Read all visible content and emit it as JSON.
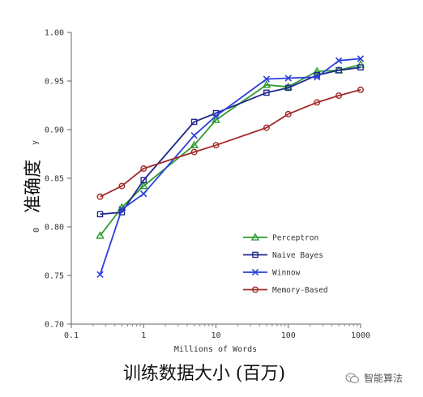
{
  "chart_data": {
    "type": "line",
    "xscale": "log",
    "xlim": [
      0.1,
      1000
    ],
    "ylim": [
      0.7,
      1.0
    ],
    "x_ticks": [
      "0.1",
      "1",
      "10",
      "100",
      "1000"
    ],
    "y_ticks": [
      "0.70",
      "0.75",
      "0.80",
      "0.85",
      "0.90",
      "0.95",
      "1.00"
    ],
    "xlabel": "Millions of Words",
    "xlabel_zh": "训练数据大小 (百万)",
    "ylabel_residual": "0",
    "ylabel_zh": "准确度",
    "ylabel_residual_top": "y",
    "grid": false,
    "legend_position": "lower-right",
    "series": [
      {
        "name": "Perceptron",
        "color": "#2e9a2e",
        "marker": "triangle",
        "x": [
          0.25,
          0.5,
          1,
          5,
          10,
          50,
          100,
          250,
          500,
          1000
        ],
        "y": [
          0.791,
          0.82,
          0.842,
          0.884,
          0.91,
          0.946,
          0.944,
          0.96,
          0.961,
          0.967
        ]
      },
      {
        "name": "Naive Bayes",
        "color": "#1f2a8a",
        "marker": "square",
        "x": [
          0.25,
          0.5,
          1,
          5,
          10,
          50,
          100,
          250,
          500,
          1000
        ],
        "y": [
          0.813,
          0.815,
          0.848,
          0.908,
          0.917,
          0.938,
          0.943,
          0.956,
          0.961,
          0.964
        ]
      },
      {
        "name": "Winnow",
        "color": "#2b3fe0",
        "marker": "x",
        "x": [
          0.25,
          0.5,
          1,
          5,
          10,
          50,
          100,
          250,
          500,
          1000
        ],
        "y": [
          0.751,
          0.818,
          0.834,
          0.894,
          0.914,
          0.952,
          0.953,
          0.954,
          0.971,
          0.973
        ]
      },
      {
        "name": "Memory-Based",
        "color": "#a32a2a",
        "marker": "circle",
        "x": [
          0.25,
          0.5,
          1,
          5,
          10,
          50,
          100,
          250,
          500,
          1000
        ],
        "y": [
          0.831,
          0.842,
          0.86,
          0.877,
          0.884,
          0.902,
          0.916,
          0.928,
          0.935,
          0.941
        ]
      }
    ]
  },
  "watermark": {
    "text": "智能算法",
    "icon": "wechat-icon"
  }
}
